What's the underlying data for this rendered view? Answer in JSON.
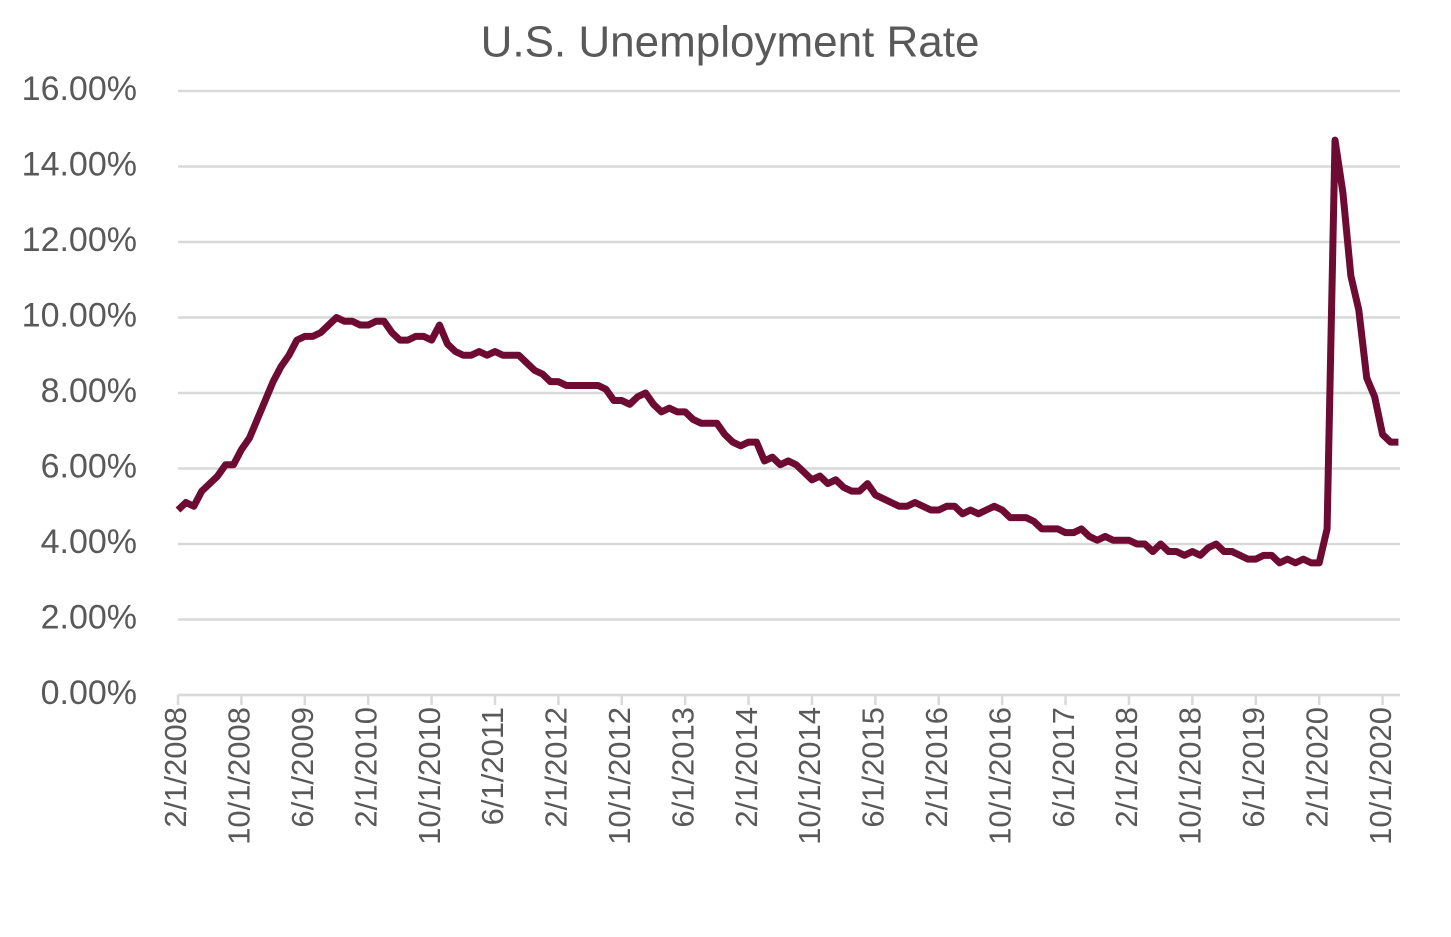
{
  "chart_data": {
    "type": "line",
    "title": "U.S. Unemployment Rate",
    "categories": [
      "2/1/2008",
      null,
      null,
      null,
      null,
      null,
      null,
      null,
      "10/1/2008",
      null,
      null,
      null,
      null,
      null,
      null,
      null,
      "6/1/2009",
      null,
      null,
      null,
      null,
      null,
      null,
      null,
      "2/1/2010",
      null,
      null,
      null,
      null,
      null,
      null,
      null,
      "10/1/2010",
      null,
      null,
      null,
      null,
      null,
      null,
      null,
      "6/1/2011",
      null,
      null,
      null,
      null,
      null,
      null,
      null,
      "2/1/2012",
      null,
      null,
      null,
      null,
      null,
      null,
      null,
      "10/1/2012",
      null,
      null,
      null,
      null,
      null,
      null,
      null,
      "6/1/2013",
      null,
      null,
      null,
      null,
      null,
      null,
      null,
      "2/1/2014",
      null,
      null,
      null,
      null,
      null,
      null,
      null,
      "10/1/2014",
      null,
      null,
      null,
      null,
      null,
      null,
      null,
      "6/1/2015",
      null,
      null,
      null,
      null,
      null,
      null,
      null,
      "2/1/2016",
      null,
      null,
      null,
      null,
      null,
      null,
      null,
      "10/1/2016",
      null,
      null,
      null,
      null,
      null,
      null,
      null,
      "6/1/2017",
      null,
      null,
      null,
      null,
      null,
      null,
      null,
      "2/1/2018",
      null,
      null,
      null,
      null,
      null,
      null,
      null,
      "10/1/2018",
      null,
      null,
      null,
      null,
      null,
      null,
      null,
      "6/1/2019",
      null,
      null,
      null,
      null,
      null,
      null,
      null,
      "2/1/2020",
      null,
      null,
      null,
      null,
      null,
      null,
      null,
      "10/1/2020",
      null,
      null
    ],
    "values": [
      4.9,
      5.1,
      5.0,
      5.4,
      5.6,
      5.8,
      6.1,
      6.1,
      6.5,
      6.8,
      7.3,
      7.8,
      8.3,
      8.7,
      9.0,
      9.4,
      9.5,
      9.5,
      9.6,
      9.8,
      10.0,
      9.9,
      9.9,
      9.8,
      9.8,
      9.9,
      9.9,
      9.6,
      9.4,
      9.4,
      9.5,
      9.5,
      9.4,
      9.8,
      9.3,
      9.1,
      9.0,
      9.0,
      9.1,
      9.0,
      9.1,
      9.0,
      9.0,
      9.0,
      8.8,
      8.6,
      8.5,
      8.3,
      8.3,
      8.2,
      8.2,
      8.2,
      8.2,
      8.2,
      8.1,
      7.8,
      7.8,
      7.7,
      7.9,
      8.0,
      7.7,
      7.5,
      7.6,
      7.5,
      7.5,
      7.3,
      7.2,
      7.2,
      7.2,
      6.9,
      6.7,
      6.6,
      6.7,
      6.7,
      6.2,
      6.3,
      6.1,
      6.2,
      6.1,
      5.9,
      5.7,
      5.8,
      5.6,
      5.7,
      5.5,
      5.4,
      5.4,
      5.6,
      5.3,
      5.2,
      5.1,
      5.0,
      5.0,
      5.1,
      5.0,
      4.9,
      4.9,
      5.0,
      5.0,
      4.8,
      4.9,
      4.8,
      4.9,
      5.0,
      4.9,
      4.7,
      4.7,
      4.7,
      4.6,
      4.4,
      4.4,
      4.4,
      4.3,
      4.3,
      4.4,
      4.2,
      4.1,
      4.2,
      4.1,
      4.1,
      4.1,
      4.0,
      4.0,
      3.8,
      4.0,
      3.8,
      3.8,
      3.7,
      3.8,
      3.7,
      3.9,
      4.0,
      3.8,
      3.8,
      3.7,
      3.6,
      3.6,
      3.7,
      3.7,
      3.5,
      3.6,
      3.5,
      3.6,
      3.5,
      3.5,
      4.4,
      14.7,
      13.3,
      11.1,
      10.2,
      8.4,
      7.9,
      6.9,
      6.7,
      6.7
    ],
    "color": "#6d0b33",
    "ylim": [
      0,
      16
    ],
    "yticks": [
      {
        "value": 0,
        "label": "0.00%"
      },
      {
        "value": 2,
        "label": "2.00%"
      },
      {
        "value": 4,
        "label": "4.00%"
      },
      {
        "value": 6,
        "label": "6.00%"
      },
      {
        "value": 8,
        "label": "8.00%"
      },
      {
        "value": 10,
        "label": "10.00%"
      },
      {
        "value": 12,
        "label": "12.00%"
      },
      {
        "value": 14,
        "label": "14.00%"
      },
      {
        "value": 16,
        "label": "16.00%"
      }
    ],
    "grid": true
  }
}
